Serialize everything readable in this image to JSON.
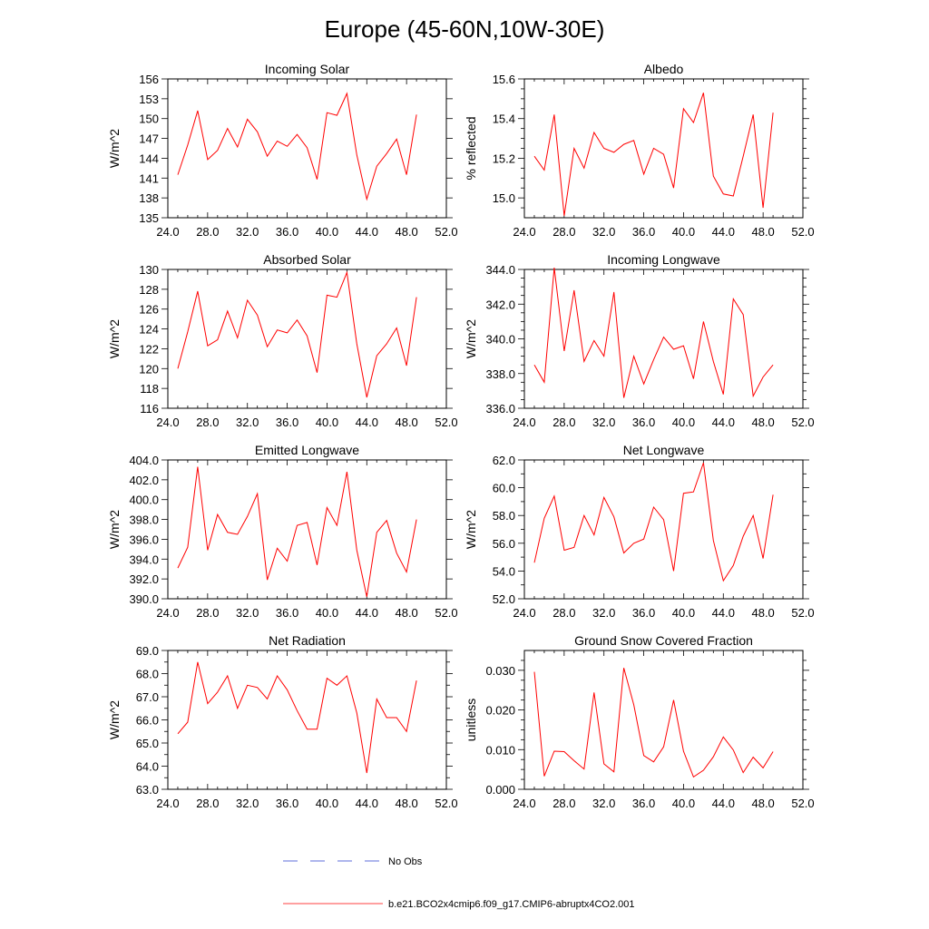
{
  "figure_title": "Europe (45-60N,10W-30E)",
  "legend": [
    {
      "label": "No Obs",
      "color": "#2a3ccf",
      "dash": true
    },
    {
      "label": "b.e21.BCO2x4cmip6.f09_g17.CMIP6-abruptx4CO2.001",
      "color": "#ff0000",
      "dash": false
    }
  ],
  "chart_data": [
    {
      "type": "line",
      "title": "Incoming Solar",
      "ylabel": "W/m^2",
      "xlim": [
        24,
        52
      ],
      "xticks": [
        24,
        28,
        32,
        36,
        40,
        44,
        48,
        52
      ],
      "ylim": [
        135,
        156
      ],
      "yticks": [
        135,
        138,
        141,
        144,
        147,
        150,
        153,
        156
      ],
      "ydec": 0,
      "series": [
        {
          "name": "b.e21.BCO2x4cmip6.f09_g17.CMIP6-abruptx4CO2.001",
          "color": "#ff0000",
          "x": [
            25,
            26,
            27,
            28,
            29,
            30,
            31,
            32,
            33,
            34,
            35,
            36,
            37,
            38,
            39,
            40,
            41,
            42,
            43,
            44,
            45,
            46,
            47,
            48,
            49
          ],
          "y": [
            141.5,
            146,
            151.2,
            143.8,
            145.2,
            148.5,
            145.7,
            149.9,
            148,
            144.3,
            146.6,
            145.8,
            147.6,
            145.6,
            140.8,
            150.9,
            150.5,
            153.8,
            144.5,
            137.8,
            142.8,
            144.7,
            146.9,
            141.5,
            150.6
          ]
        }
      ]
    },
    {
      "type": "line",
      "title": "Albedo",
      "ylabel": "% reflected",
      "xlim": [
        24,
        52
      ],
      "xticks": [
        24,
        28,
        32,
        36,
        40,
        44,
        48,
        52
      ],
      "ylim": [
        14.9,
        15.6
      ],
      "yticks": [
        15.0,
        15.2,
        15.4,
        15.6
      ],
      "minor": [
        14.95,
        15.05,
        15.1,
        15.15,
        15.25,
        15.3,
        15.35,
        15.45,
        15.5,
        15.55
      ],
      "ydec": 1,
      "series": [
        {
          "name": "b.e21.BCO2x4cmip6.f09_g17.CMIP6-abruptx4CO2.001",
          "color": "#ff0000",
          "x": [
            25,
            26,
            27,
            28,
            29,
            30,
            31,
            32,
            33,
            34,
            35,
            36,
            37,
            38,
            39,
            40,
            41,
            42,
            43,
            44,
            45,
            46,
            47,
            48,
            49
          ],
          "y": [
            15.21,
            15.14,
            15.42,
            14.91,
            15.25,
            15.15,
            15.33,
            15.25,
            15.23,
            15.27,
            15.29,
            15.12,
            15.25,
            15.22,
            15.05,
            15.45,
            15.38,
            15.53,
            15.11,
            15.02,
            15.01,
            15.21,
            15.42,
            14.95,
            15.43
          ]
        }
      ]
    },
    {
      "type": "line",
      "title": "Absorbed Solar",
      "ylabel": "W/m^2",
      "xlim": [
        24,
        52
      ],
      "xticks": [
        24,
        28,
        32,
        36,
        40,
        44,
        48,
        52
      ],
      "ylim": [
        116,
        130
      ],
      "yticks": [
        116,
        118,
        120,
        122,
        124,
        126,
        128,
        130
      ],
      "ydec": 0,
      "series": [
        {
          "name": "b.e21.BCO2x4cmip6.f09_g17.CMIP6-abruptx4CO2.001",
          "color": "#ff0000",
          "x": [
            25,
            26,
            27,
            28,
            29,
            30,
            31,
            32,
            33,
            34,
            35,
            36,
            37,
            38,
            39,
            40,
            41,
            42,
            43,
            44,
            45,
            46,
            47,
            48,
            49
          ],
          "y": [
            120,
            123.7,
            127.8,
            122.3,
            122.9,
            125.8,
            123.1,
            126.9,
            125.4,
            122.2,
            123.9,
            123.6,
            124.9,
            123.3,
            119.6,
            127.4,
            127.2,
            129.7,
            122.5,
            117.1,
            121.3,
            122.5,
            124.1,
            120.3,
            127.2
          ]
        }
      ]
    },
    {
      "type": "line",
      "title": "Incoming Longwave",
      "ylabel": "W/m^2",
      "xlim": [
        24,
        52
      ],
      "xticks": [
        24,
        28,
        32,
        36,
        40,
        44,
        48,
        52
      ],
      "ylim": [
        336.0,
        344.0
      ],
      "yticks": [
        336.0,
        338.0,
        340.0,
        342.0,
        344.0
      ],
      "minor": [
        336.5,
        337,
        337.5,
        338.5,
        339,
        339.5,
        340.5,
        341,
        341.5,
        342.5,
        343,
        343.5
      ],
      "ydec": 1,
      "series": [
        {
          "name": "b.e21.BCO2x4cmip6.f09_g17.CMIP6-abruptx4CO2.001",
          "color": "#ff0000",
          "x": [
            25,
            26,
            27,
            28,
            29,
            30,
            31,
            32,
            33,
            34,
            35,
            36,
            37,
            38,
            39,
            40,
            41,
            42,
            43,
            44,
            45,
            46,
            47,
            48,
            49
          ],
          "y": [
            338.5,
            337.5,
            344.1,
            339.3,
            342.8,
            338.7,
            339.9,
            339,
            342.7,
            336.6,
            339,
            337.4,
            338.8,
            340.1,
            339.4,
            339.6,
            337.7,
            341,
            338.7,
            336.8,
            342.3,
            341.4,
            336.7,
            337.8,
            338.5
          ]
        }
      ]
    },
    {
      "type": "line",
      "title": "Emitted Longwave",
      "ylabel": "W/m^2",
      "xlim": [
        24,
        52
      ],
      "xticks": [
        24,
        28,
        32,
        36,
        40,
        44,
        48,
        52
      ],
      "ylim": [
        390.0,
        404.0
      ],
      "yticks": [
        390.0,
        392.0,
        394.0,
        396.0,
        398.0,
        400.0,
        402.0,
        404.0
      ],
      "ydec": 1,
      "series": [
        {
          "name": "b.e21.BCO2x4cmip6.f09_g17.CMIP6-abruptx4CO2.001",
          "color": "#ff0000",
          "x": [
            25,
            26,
            27,
            28,
            29,
            30,
            31,
            32,
            33,
            34,
            35,
            36,
            37,
            38,
            39,
            40,
            41,
            42,
            43,
            44,
            45,
            46,
            47,
            48,
            49
          ],
          "y": [
            393.1,
            395.2,
            403.3,
            394.9,
            398.5,
            396.7,
            396.5,
            398.3,
            400.6,
            391.9,
            395.1,
            393.8,
            397.4,
            397.7,
            393.4,
            399.2,
            397.4,
            402.8,
            394.9,
            390.2,
            396.7,
            397.9,
            394.6,
            392.7,
            398
          ]
        }
      ]
    },
    {
      "type": "line",
      "title": "Net Longwave",
      "ylabel": "W/m^2",
      "xlim": [
        24,
        52
      ],
      "xticks": [
        24,
        28,
        32,
        36,
        40,
        44,
        48,
        52
      ],
      "ylim": [
        52.0,
        62.0
      ],
      "yticks": [
        52.0,
        54.0,
        56.0,
        58.0,
        60.0,
        62.0
      ],
      "minor": [
        53,
        55,
        57,
        59,
        61
      ],
      "ydec": 1,
      "series": [
        {
          "name": "b.e21.BCO2x4cmip6.f09_g17.CMIP6-abruptx4CO2.001",
          "color": "#ff0000",
          "x": [
            25,
            26,
            27,
            28,
            29,
            30,
            31,
            32,
            33,
            34,
            35,
            36,
            37,
            38,
            39,
            40,
            41,
            42,
            43,
            44,
            45,
            46,
            47,
            48,
            49
          ],
          "y": [
            54.6,
            57.8,
            59.4,
            55.5,
            55.7,
            58,
            56.6,
            59.3,
            57.9,
            55.3,
            56,
            56.3,
            58.6,
            57.7,
            54,
            59.6,
            59.7,
            61.8,
            56.2,
            53.3,
            54.4,
            56.5,
            58,
            54.9,
            59.5
          ]
        }
      ]
    },
    {
      "type": "line",
      "title": "Net Radiation",
      "ylabel": "W/m^2",
      "xlim": [
        24,
        52
      ],
      "xticks": [
        24,
        28,
        32,
        36,
        40,
        44,
        48,
        52
      ],
      "ylim": [
        63.0,
        69.0
      ],
      "yticks": [
        63.0,
        64.0,
        65.0,
        66.0,
        67.0,
        68.0,
        69.0
      ],
      "minor": [
        63.5,
        64.5,
        65.5,
        66.5,
        67.5,
        68.5
      ],
      "ydec": 1,
      "series": [
        {
          "name": "b.e21.BCO2x4cmip6.f09_g17.CMIP6-abruptx4CO2.001",
          "color": "#ff0000",
          "x": [
            25,
            26,
            27,
            28,
            29,
            30,
            31,
            32,
            33,
            34,
            35,
            36,
            37,
            38,
            39,
            40,
            41,
            42,
            43,
            44,
            45,
            46,
            47,
            48,
            49
          ],
          "y": [
            65.4,
            65.9,
            68.5,
            66.7,
            67.2,
            67.9,
            66.5,
            67.5,
            67.4,
            66.9,
            67.9,
            67.3,
            66.4,
            65.6,
            65.6,
            67.8,
            67.5,
            67.9,
            66.3,
            63.7,
            66.9,
            66.1,
            66.1,
            65.5,
            67.7
          ]
        }
      ]
    },
    {
      "type": "line",
      "title": "Ground Snow Covered Fraction",
      "ylabel": "unitless",
      "xlim": [
        24,
        52
      ],
      "xticks": [
        24,
        28,
        32,
        36,
        40,
        44,
        48,
        52
      ],
      "ylim": [
        0,
        0.035
      ],
      "yticks": [
        0.0,
        0.01,
        0.02,
        0.03
      ],
      "minor": [
        0.0025,
        0.005,
        0.0075,
        0.0125,
        0.015,
        0.0175,
        0.0225,
        0.025,
        0.0275,
        0.0325
      ],
      "ydec": 3,
      "series": [
        {
          "name": "b.e21.BCO2x4cmip6.f09_g17.CMIP6-abruptx4CO2.001",
          "color": "#ff0000",
          "x": [
            25,
            26,
            27,
            28,
            29,
            30,
            31,
            32,
            33,
            34,
            35,
            36,
            37,
            38,
            39,
            40,
            41,
            42,
            43,
            44,
            45,
            46,
            47,
            48,
            49
          ],
          "y": [
            0.0296,
            0.0033,
            0.0096,
            0.0095,
            0.0072,
            0.0051,
            0.0244,
            0.0064,
            0.0044,
            0.0306,
            0.0213,
            0.0085,
            0.0069,
            0.0107,
            0.0225,
            0.0096,
            0.0031,
            0.0048,
            0.0082,
            0.0132,
            0.0099,
            0.0042,
            0.0081,
            0.0054,
            0.0095
          ]
        }
      ]
    }
  ]
}
